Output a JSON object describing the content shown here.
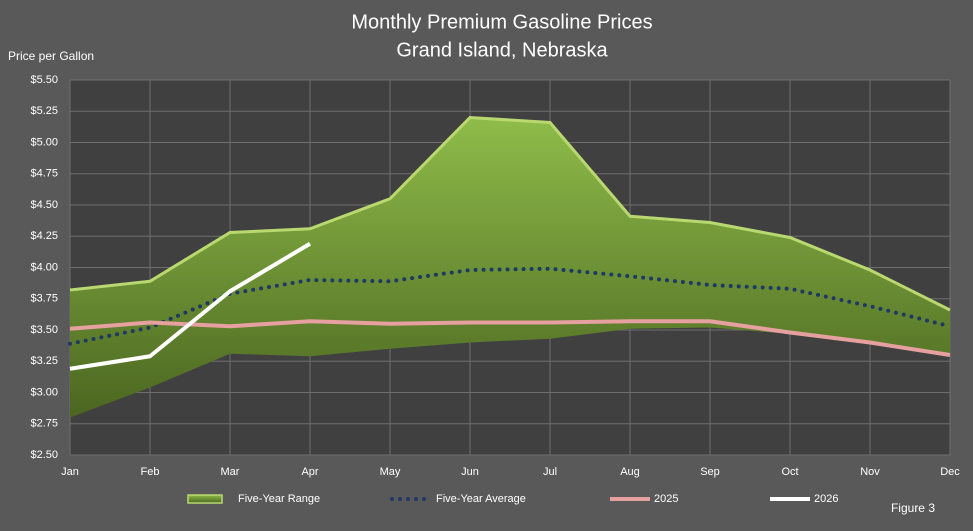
{
  "chart_data": {
    "type": "line",
    "title": "Monthly Premium Gasoline Prices",
    "subtitle": "Grand Island, Nebraska",
    "y_label": "Price per Gallon",
    "annotation": "Figure 3",
    "categories": [
      "Jan",
      "Feb",
      "Mar",
      "Apr",
      "May",
      "Jun",
      "Jul",
      "Aug",
      "Sep",
      "Oct",
      "Nov",
      "Dec"
    ],
    "series": [
      {
        "name": "Five-Year Range",
        "color": "#7fa83a",
        "values": [
          3.82,
          3.89,
          4.28,
          4.31,
          4.55,
          5.2,
          5.16,
          4.41,
          4.36,
          4.24,
          3.98,
          3.66
        ],
        "lower": [
          2.8,
          3.04,
          3.31,
          3.29,
          3.35,
          3.4,
          3.43,
          3.51,
          3.52,
          3.47,
          3.4,
          3.3
        ]
      },
      {
        "name": "Five-Year Average",
        "color": "#1f3864",
        "values": [
          3.39,
          3.52,
          3.79,
          3.9,
          3.89,
          3.98,
          3.99,
          3.93,
          3.86,
          3.83,
          3.69,
          3.53
        ]
      },
      {
        "name": "2025",
        "color": "#e6a0a0",
        "values": [
          3.51,
          3.56,
          3.53,
          3.57,
          3.55,
          3.56,
          3.56,
          3.57,
          3.57,
          3.48,
          3.4,
          3.3
        ]
      },
      {
        "name": "2026",
        "color": "#ffffff",
        "values": [
          3.19,
          3.29,
          3.81,
          4.19,
          null,
          null,
          null,
          null,
          null,
          null,
          null,
          null
        ]
      }
    ],
    "ylim": [
      2.5,
      5.5
    ],
    "yticks": [
      {
        "value": 2.5,
        "label": "$2.50"
      },
      {
        "value": 2.75,
        "label": "$2.75"
      },
      {
        "value": 3.0,
        "label": "$3.00"
      },
      {
        "value": 3.25,
        "label": "$3.25"
      },
      {
        "value": 3.5,
        "label": "$3.50"
      },
      {
        "value": 3.75,
        "label": "$3.75"
      },
      {
        "value": 4.0,
        "label": "$4.00"
      },
      {
        "value": 4.25,
        "label": "$4.25"
      },
      {
        "value": 4.5,
        "label": "$4.50"
      },
      {
        "value": 4.75,
        "label": "$4.75"
      },
      {
        "value": 5.0,
        "label": "$5.00"
      },
      {
        "value": 5.25,
        "label": "$5.25"
      },
      {
        "value": 5.5,
        "label": "$5.50"
      }
    ],
    "grid": true
  }
}
